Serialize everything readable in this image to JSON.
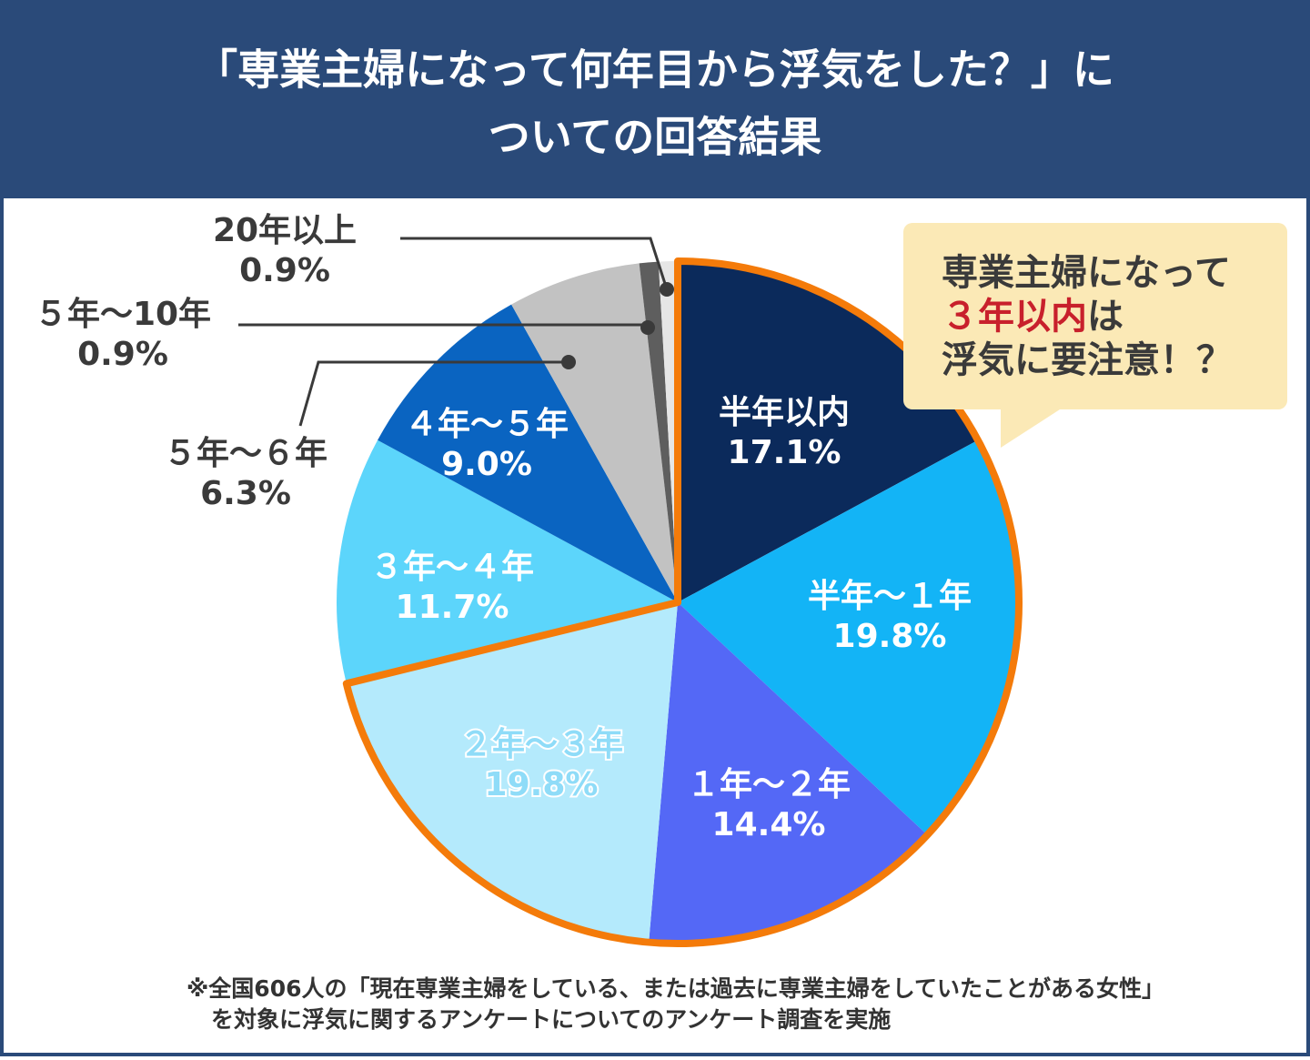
{
  "chart_data": {
    "type": "pie",
    "title_lines": [
      "「専業主婦になって何年目から浮気をした？」に",
      "ついての回答結果"
    ],
    "categories": [
      "半年以内",
      "半年〜１年",
      "１年〜２年",
      "２年〜３年",
      "３年〜４年",
      "４年〜５年",
      "５年〜６年",
      "５年〜10年",
      "20年以上"
    ],
    "values": [
      17.1,
      19.8,
      14.4,
      19.8,
      11.7,
      9.0,
      6.3,
      0.9,
      0.9
    ],
    "value_labels": [
      "17.1%",
      "19.8%",
      "14.4%",
      "19.8%",
      "11.7%",
      "9.0%",
      "6.3%",
      "0.9%",
      "0.9%"
    ],
    "colors": [
      "#0b2a5b",
      "#13b4f6",
      "#5468f6",
      "#b4eafc",
      "#5cd5fb",
      "#0a64c1",
      "#c2c2c2",
      "#5e5e5e",
      "#e6e6e6"
    ],
    "callout": [
      "専業主婦になって",
      "３年以内",
      "は",
      "浮気に要注意！？"
    ],
    "note": [
      "※全国606人の「現在専業主婦をしている、または過去に専業主婦をしていたことがある女性」",
      "を対象に浮気に関するアンケートについてのアンケート調査を実施"
    ]
  }
}
